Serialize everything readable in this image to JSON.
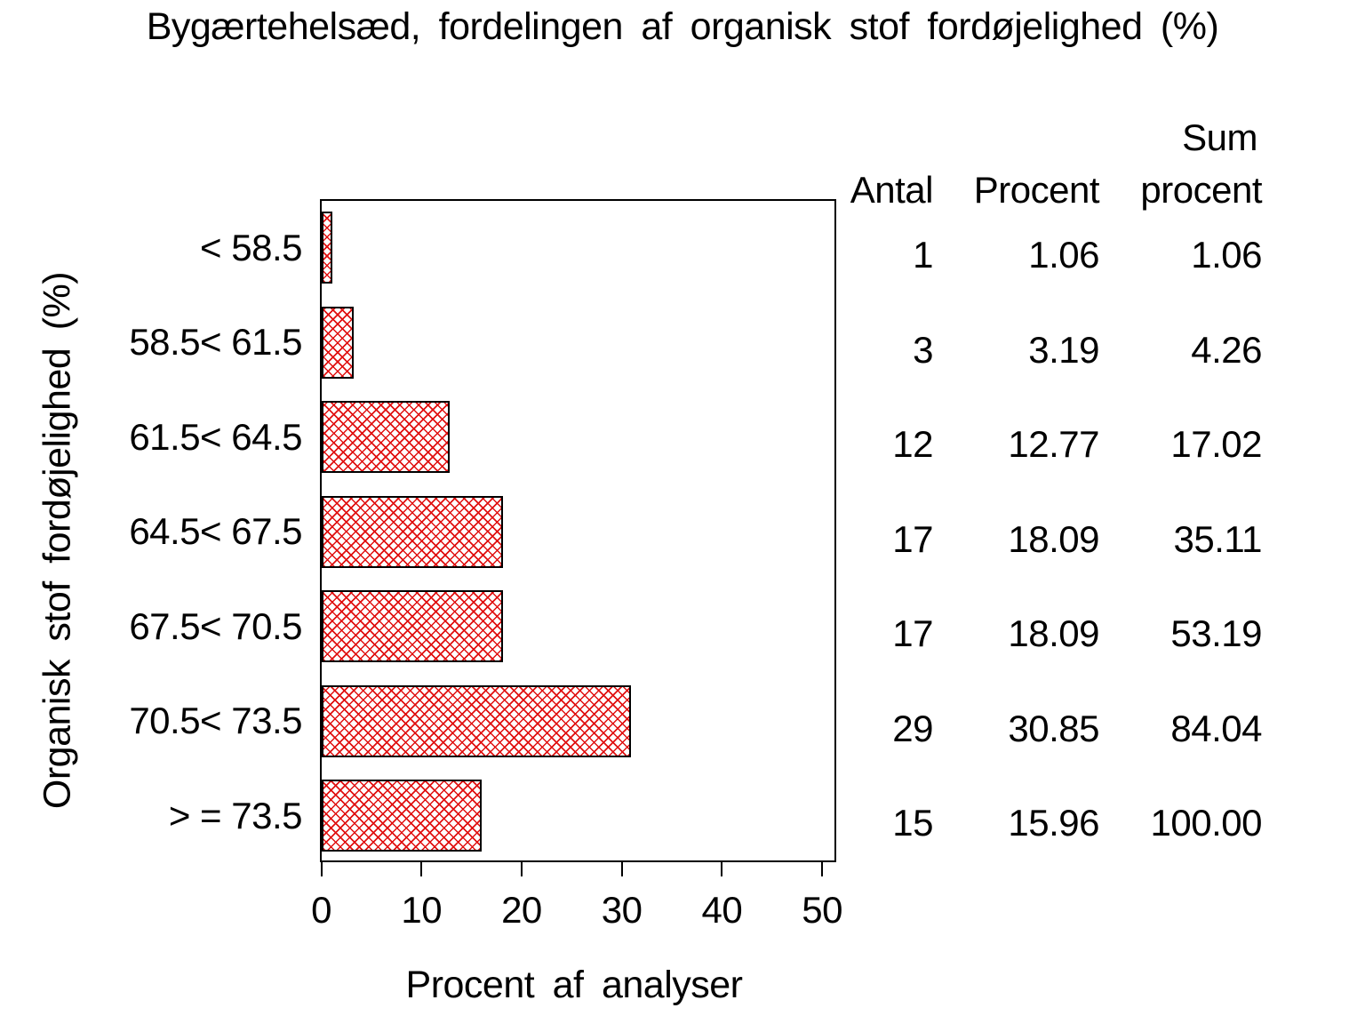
{
  "page": {
    "background": "#ffffff",
    "text_color": "#000000"
  },
  "table": {
    "header": {
      "antal": "Antal",
      "procent": "Procent",
      "sum_line1": "Sum",
      "sum_line2": "procent"
    },
    "rows": [
      {
        "category": "< 58.5",
        "antal": "1",
        "procent": "1.06",
        "sum": "1.06"
      },
      {
        "category": "58.5< 61.5",
        "antal": "3",
        "procent": "3.19",
        "sum": "4.26"
      },
      {
        "category": "61.5< 64.5",
        "antal": "12",
        "procent": "12.77",
        "sum": "17.02"
      },
      {
        "category": "64.5< 67.5",
        "antal": "17",
        "procent": "18.09",
        "sum": "35.11"
      },
      {
        "category": "67.5< 70.5",
        "antal": "17",
        "procent": "18.09",
        "sum": "53.19"
      },
      {
        "category": "70.5< 73.5",
        "antal": "29",
        "procent": "30.85",
        "sum": "84.04"
      },
      {
        "category": "> = 73.5",
        "antal": "15",
        "procent": "15.96",
        "sum": "100.00"
      }
    ]
  },
  "chart_data": {
    "type": "bar",
    "orientation": "horizontal",
    "title": "Bygærtehelsæd, fordelingen af organisk stof fordøjelighed (%)",
    "xlabel": "Procent af analyser",
    "ylabel": "Organisk stof fordøjelighed (%)",
    "categories": [
      "< 58.5",
      "58.5< 61.5",
      "61.5< 64.5",
      "64.5< 67.5",
      "67.5< 70.5",
      "70.5< 73.5",
      "> = 73.5"
    ],
    "series": [
      {
        "name": "Procent af analyser",
        "values": [
          1.06,
          3.19,
          12.77,
          18.09,
          18.09,
          30.85,
          15.96
        ]
      },
      {
        "name": "Antal",
        "values": [
          1,
          3,
          12,
          17,
          17,
          29,
          15
        ]
      },
      {
        "name": "Sum procent",
        "values": [
          1.06,
          4.26,
          17.02,
          35.11,
          53.19,
          84.04,
          100.0
        ]
      }
    ],
    "xlim": [
      0,
      50
    ],
    "x_ticks": [
      0,
      10,
      20,
      30,
      40,
      50
    ],
    "grid": false,
    "legend": false,
    "bar_style": {
      "fill": "diagonal-crosshatch",
      "hatch_color": "#e01010",
      "border_color": "#000000",
      "background": "#ffffff"
    }
  }
}
